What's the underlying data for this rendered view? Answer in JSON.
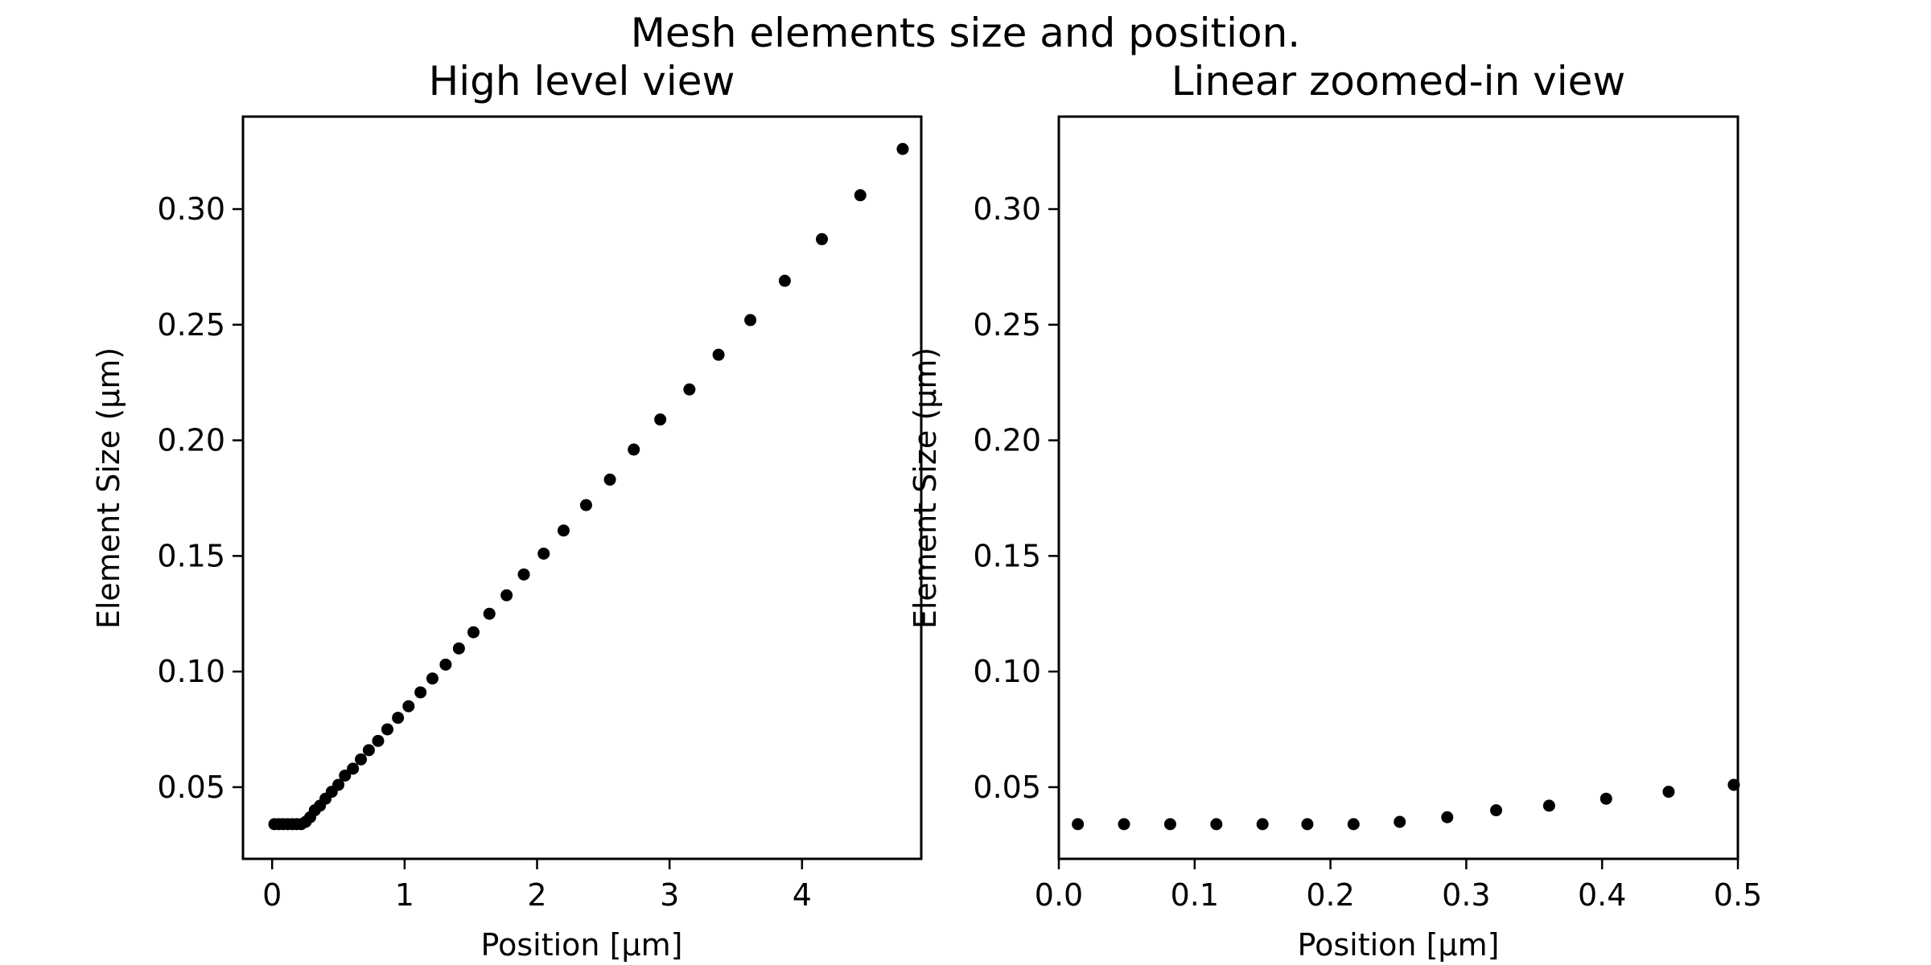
{
  "figure": {
    "suptitle": "Mesh elements size and position."
  },
  "chart_data": [
    {
      "type": "scatter",
      "title": "High level view",
      "xlabel": "Position [μm]",
      "ylabel": "Element Size (μm)",
      "xlim": [
        -0.22,
        4.9
      ],
      "ylim": [
        0.019,
        0.34
      ],
      "xticks": [
        0,
        1,
        2,
        3,
        4
      ],
      "xtick_labels": [
        "0",
        "1",
        "2",
        "3",
        "4"
      ],
      "yticks": [
        0.05,
        0.1,
        0.15,
        0.2,
        0.25,
        0.3
      ],
      "ytick_labels": [
        "0.05",
        "0.10",
        "0.15",
        "0.20",
        "0.25",
        "0.30"
      ],
      "grid": false,
      "marker_color": "#000000",
      "x": [
        0.017,
        0.051,
        0.084,
        0.118,
        0.152,
        0.186,
        0.219,
        0.253,
        0.287,
        0.322,
        0.361,
        0.403,
        0.45,
        0.5,
        0.55,
        0.61,
        0.67,
        0.73,
        0.8,
        0.87,
        0.95,
        1.03,
        1.12,
        1.21,
        1.31,
        1.41,
        1.52,
        1.64,
        1.77,
        1.9,
        2.05,
        2.2,
        2.37,
        2.55,
        2.73,
        2.93,
        3.15,
        3.37,
        3.61,
        3.87,
        4.15,
        4.44,
        4.76
      ],
      "y": [
        0.034,
        0.034,
        0.034,
        0.034,
        0.034,
        0.034,
        0.034,
        0.035,
        0.037,
        0.04,
        0.042,
        0.045,
        0.048,
        0.051,
        0.055,
        0.058,
        0.062,
        0.066,
        0.07,
        0.075,
        0.08,
        0.085,
        0.091,
        0.097,
        0.103,
        0.11,
        0.117,
        0.125,
        0.133,
        0.142,
        0.151,
        0.161,
        0.172,
        0.183,
        0.196,
        0.209,
        0.222,
        0.237,
        0.252,
        0.269,
        0.287,
        0.306,
        0.326
      ]
    },
    {
      "type": "scatter",
      "title": "Linear zoomed-in view",
      "xlabel": "Position [μm]",
      "ylabel": "Element Size (μm)",
      "xlim": [
        0.0,
        0.5
      ],
      "ylim": [
        0.019,
        0.34
      ],
      "xticks": [
        0.0,
        0.1,
        0.2,
        0.3,
        0.4,
        0.5
      ],
      "xtick_labels": [
        "0.0",
        "0.1",
        "0.2",
        "0.3",
        "0.4",
        "0.5"
      ],
      "yticks": [
        0.05,
        0.1,
        0.15,
        0.2,
        0.25,
        0.3
      ],
      "ytick_labels": [
        "0.05",
        "0.10",
        "0.15",
        "0.20",
        "0.25",
        "0.30"
      ],
      "grid": false,
      "marker_color": "#000000",
      "x": [
        0.014,
        0.048,
        0.082,
        0.116,
        0.15,
        0.183,
        0.217,
        0.251,
        0.286,
        0.322,
        0.361,
        0.403,
        0.449,
        0.497
      ],
      "y": [
        0.034,
        0.034,
        0.034,
        0.034,
        0.034,
        0.034,
        0.034,
        0.035,
        0.037,
        0.04,
        0.042,
        0.045,
        0.048,
        0.051
      ]
    }
  ]
}
